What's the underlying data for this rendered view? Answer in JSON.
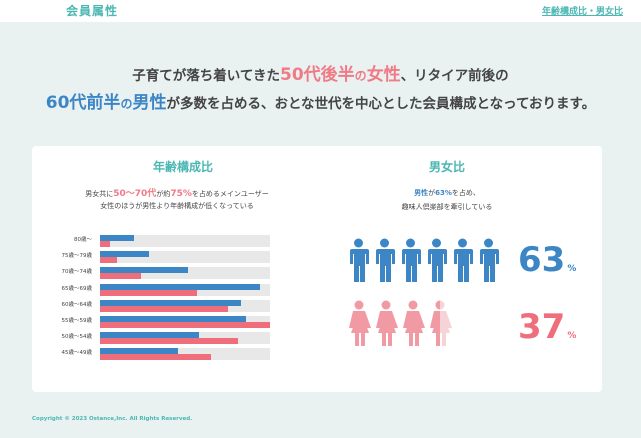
{
  "header": {
    "title": "会員属性",
    "link_label": "年齢構成比・男女比"
  },
  "headline": {
    "l1_pre": "子育てが落ち着いてきた",
    "l1_em1": "50代後半",
    "l1_no": "の",
    "l1_em2": "女性",
    "l1_post": "、リタイア前後の",
    "l2_em1": "60代前半",
    "l2_no": "の",
    "l2_em2": "男性",
    "l2_post": "が多数を占める、おとな世代を中心とした会員構成となっております。"
  },
  "age_section": {
    "title": "年齢構成比",
    "desc1_pre": "男女共に",
    "desc1_em1": "50～70代",
    "desc1_mid": "が約",
    "desc1_em2": "75%",
    "desc1_post": "を占めるメインユーザー",
    "desc2": "女性のほうが男性より年齢構成が低くなっている"
  },
  "gender_section": {
    "title": "男女比",
    "desc1_em": "男性",
    "desc1_mid": "が",
    "desc1_em2": "63%",
    "desc1_post": "を占め、",
    "desc2": "趣味人倶楽部を牽引している",
    "male_percent_value": "63",
    "female_percent_value": "37",
    "unit": "%"
  },
  "chart_data": {
    "type": "bar",
    "categories": [
      "80歳～",
      "75歳～79歳",
      "70歳～74歳",
      "65歳～69歳",
      "60歳～64歳",
      "55歳～59歳",
      "50歳～54歳",
      "45歳～49歳"
    ],
    "series": [
      {
        "values": [
          20,
          29,
          52,
          94,
          83,
          86,
          58,
          46
        ]
      },
      {
        "values": [
          6,
          10,
          24,
          57,
          75,
          100,
          81,
          65
        ]
      }
    ],
    "colors": [
      "#3d86c6",
      "#ee6e7c"
    ],
    "ylim": [
      0,
      100
    ],
    "orientation": "horizontal",
    "grid": false
  },
  "icon_colors": {
    "male": "#3d86c6",
    "female": "#f29aa3",
    "female_faded": "#f6d3d6"
  },
  "footer": {
    "copyright": "Copyright © 2023 Ostance,Inc. All Rights Reserved."
  }
}
